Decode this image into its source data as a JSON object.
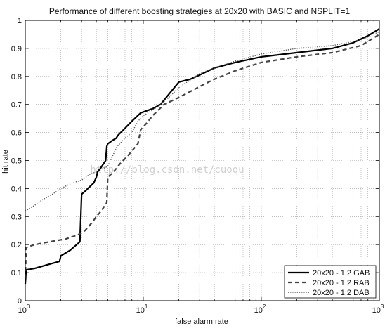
{
  "chart_data": {
    "type": "line",
    "title": "Performance of different boosting strategies at 20x20 with BASIC and NSPLIT=1",
    "xlabel": "false alarm rate",
    "ylabel": "hit rate",
    "xscale": "log",
    "xlim": [
      1,
      1000
    ],
    "ylim": [
      0,
      1
    ],
    "grid": true,
    "legend_position": "bottom-right",
    "x_tick_labels": [
      "10^0",
      "10^1",
      "10^2",
      "10^3"
    ],
    "y_tick_labels": [
      "0",
      "0.1",
      "0.2",
      "0.3",
      "0.4",
      "0.5",
      "0.6",
      "0.7",
      "0.8",
      "0.9",
      "1"
    ],
    "watermark": "http://blog.csdn.net/cuoqu",
    "series": [
      {
        "name": "20x20 - 1.2 GAB",
        "style": "solid",
        "color": "#000000",
        "points": [
          [
            1.0,
            0.06
          ],
          [
            1.02,
            0.11
          ],
          [
            1.2,
            0.115
          ],
          [
            1.6,
            0.13
          ],
          [
            1.95,
            0.14
          ],
          [
            2.0,
            0.16
          ],
          [
            2.4,
            0.18
          ],
          [
            2.9,
            0.21
          ],
          [
            3.0,
            0.38
          ],
          [
            3.2,
            0.39
          ],
          [
            3.8,
            0.42
          ],
          [
            4.0,
            0.44
          ],
          [
            4.1,
            0.46
          ],
          [
            4.3,
            0.47
          ],
          [
            4.8,
            0.5
          ],
          [
            4.9,
            0.55
          ],
          [
            5.0,
            0.56
          ],
          [
            5.4,
            0.57
          ],
          [
            5.9,
            0.58
          ],
          [
            6.1,
            0.59
          ],
          [
            6.8,
            0.61
          ],
          [
            8.0,
            0.64
          ],
          [
            9.5,
            0.67
          ],
          [
            12.0,
            0.685
          ],
          [
            14.0,
            0.7
          ],
          [
            16.0,
            0.73
          ],
          [
            20.0,
            0.78
          ],
          [
            25.0,
            0.79
          ],
          [
            30.0,
            0.805
          ],
          [
            40.0,
            0.83
          ],
          [
            60.0,
            0.85
          ],
          [
            100.0,
            0.87
          ],
          [
            200.0,
            0.885
          ],
          [
            400.0,
            0.9
          ],
          [
            600.0,
            0.92
          ],
          [
            800.0,
            0.945
          ],
          [
            1000.0,
            0.97
          ]
        ]
      },
      {
        "name": "20x20 - 1.2 RAB",
        "style": "dashed",
        "color": "#444444",
        "points": [
          [
            1.0,
            0.08
          ],
          [
            1.02,
            0.19
          ],
          [
            1.2,
            0.2
          ],
          [
            1.6,
            0.21
          ],
          [
            2.2,
            0.22
          ],
          [
            2.8,
            0.235
          ],
          [
            3.2,
            0.25
          ],
          [
            3.7,
            0.28
          ],
          [
            4.0,
            0.3
          ],
          [
            4.4,
            0.32
          ],
          [
            4.9,
            0.35
          ],
          [
            5.0,
            0.44
          ],
          [
            5.6,
            0.46
          ],
          [
            6.4,
            0.49
          ],
          [
            7.5,
            0.52
          ],
          [
            9.0,
            0.56
          ],
          [
            9.5,
            0.61
          ],
          [
            10.5,
            0.63
          ],
          [
            12.0,
            0.66
          ],
          [
            15.0,
            0.7
          ],
          [
            20.0,
            0.725
          ],
          [
            26.0,
            0.75
          ],
          [
            32.0,
            0.77
          ],
          [
            40.0,
            0.79
          ],
          [
            60.0,
            0.82
          ],
          [
            100.0,
            0.85
          ],
          [
            200.0,
            0.87
          ],
          [
            400.0,
            0.885
          ],
          [
            700.0,
            0.91
          ],
          [
            1000.0,
            0.95
          ]
        ]
      },
      {
        "name": "20x20 - 1.2 DAB",
        "style": "dotted",
        "color": "#555555",
        "points": [
          [
            1.0,
            0.32
          ],
          [
            1.2,
            0.34
          ],
          [
            1.4,
            0.36
          ],
          [
            1.7,
            0.38
          ],
          [
            2.0,
            0.4
          ],
          [
            2.5,
            0.42
          ],
          [
            3.0,
            0.43
          ],
          [
            3.5,
            0.45
          ],
          [
            4.0,
            0.46
          ],
          [
            5.0,
            0.48
          ],
          [
            6.0,
            0.55
          ],
          [
            7.0,
            0.58
          ],
          [
            8.0,
            0.6
          ],
          [
            9.0,
            0.64
          ],
          [
            10.0,
            0.66
          ],
          [
            12.0,
            0.68
          ],
          [
            16.0,
            0.72
          ],
          [
            20.0,
            0.76
          ],
          [
            30.0,
            0.81
          ],
          [
            40.0,
            0.83
          ],
          [
            60.0,
            0.855
          ],
          [
            100.0,
            0.88
          ],
          [
            200.0,
            0.9
          ],
          [
            400.0,
            0.91
          ],
          [
            700.0,
            0.93
          ],
          [
            1000.0,
            0.96
          ]
        ]
      }
    ]
  }
}
